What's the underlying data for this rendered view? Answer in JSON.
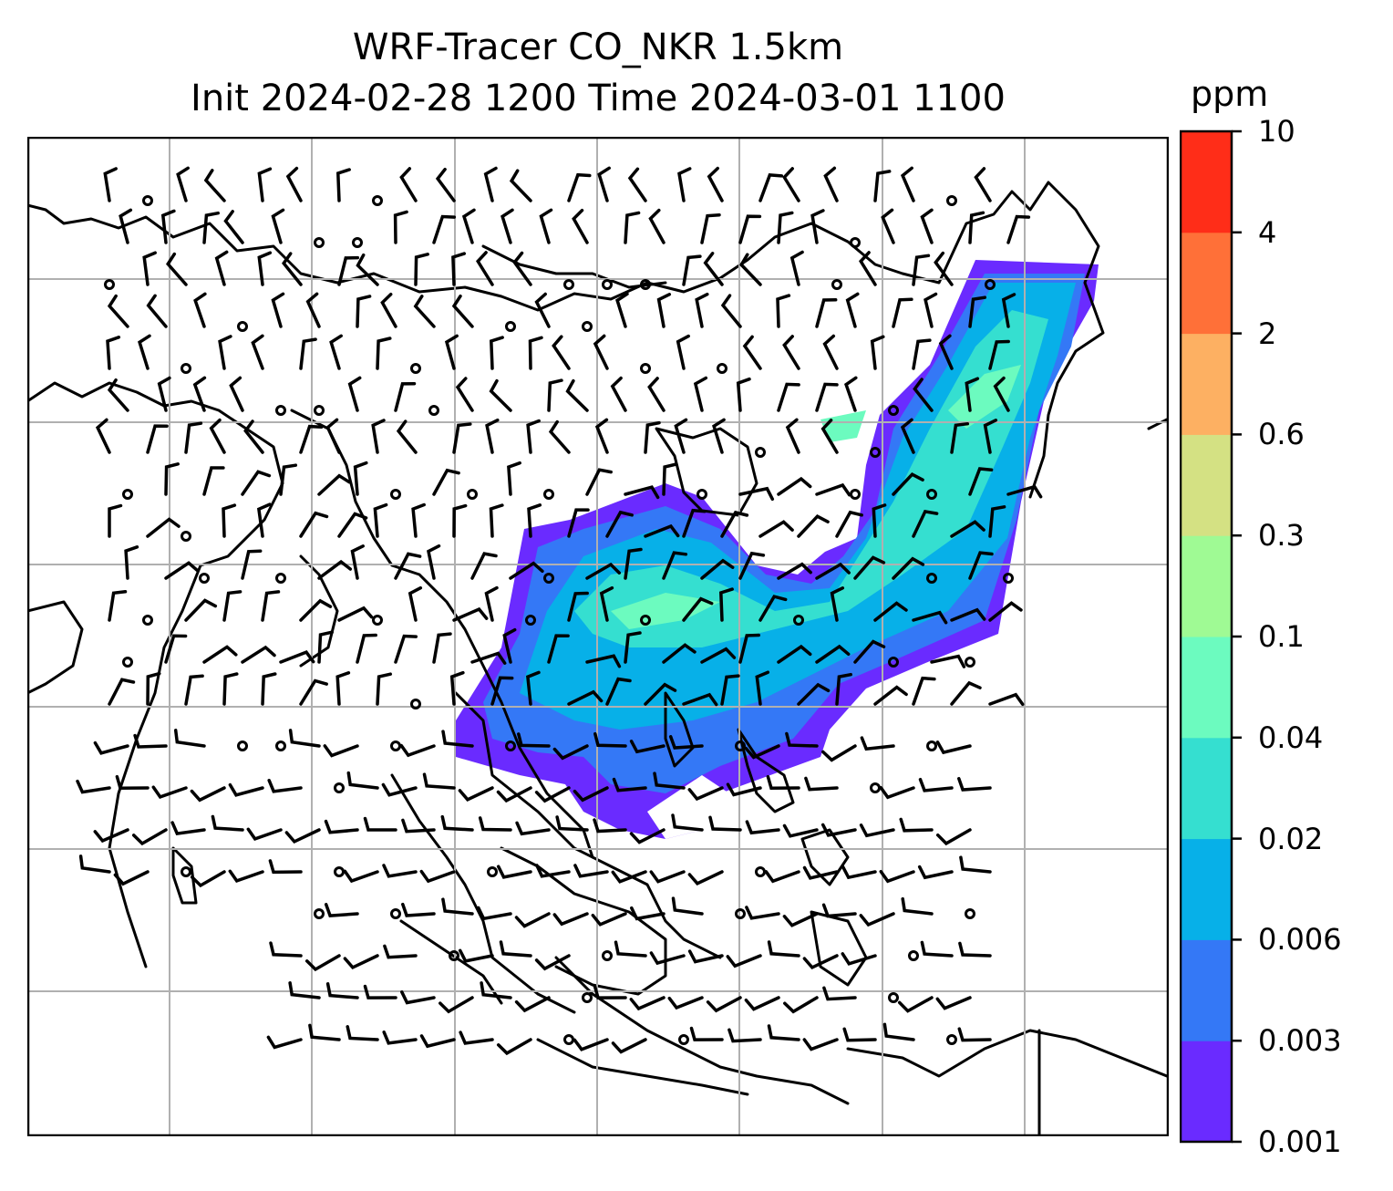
{
  "title": {
    "line1": "WRF-Tracer CO_NKR 1.5km",
    "line2": "Init 2024-02-28 1200 Time 2024-03-01 1100"
  },
  "colorbar": {
    "unit": "ppm",
    "levels": [
      "0.001",
      "0.003",
      "0.006",
      "0.02",
      "0.04",
      "0.1",
      "0.3",
      "0.6",
      "2",
      "4",
      "10"
    ],
    "colors": [
      "#6a2bff",
      "#3478f6",
      "#07b0e8",
      "#35dfd0",
      "#6cfbbf",
      "#9ffa94",
      "#d4e183",
      "#fdb062",
      "#ff7038",
      "#ff2d18"
    ]
  },
  "map": {
    "gridlines": true,
    "plume_colors": {
      "lowest": "#6a2bff",
      "low": "#3478f6",
      "mid": "#07b0e8",
      "high": "#35dfd0",
      "higher": "#6cfbbf"
    },
    "wind_barbs": "black",
    "coastline_color": "#000000"
  }
}
